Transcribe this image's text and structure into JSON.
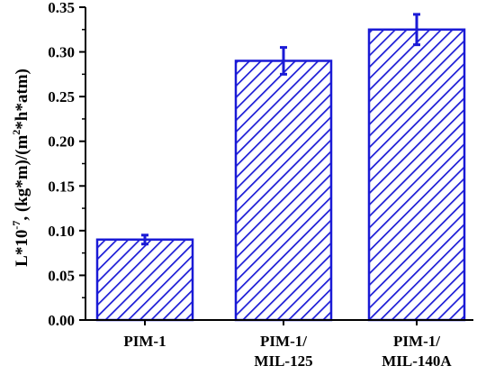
{
  "chart_data": {
    "type": "bar",
    "categories": [
      [
        "PIM-1"
      ],
      [
        "PIM-1/",
        "MIL-125"
      ],
      [
        "PIM-1/",
        "MIL-140A"
      ]
    ],
    "values": [
      0.09,
      0.29,
      0.325
    ],
    "errors": [
      0.005,
      0.015,
      0.017
    ],
    "ylim": [
      0.0,
      0.35
    ],
    "yticks": [
      "0.00",
      "0.05",
      "0.10",
      "0.15",
      "0.20",
      "0.25",
      "0.30",
      "0.35"
    ],
    "ylabel": {
      "prefix": "L*10",
      "exponent": "-7",
      "middle": ", (kg*m)/(m",
      "exponent2": "2",
      "suffix": "*h*atm)"
    },
    "xlabel": "",
    "title": "",
    "bar_fill": "hatched-diagonal",
    "bar_color": "#1a1ad6",
    "error_color": "#1a1ad6",
    "grid": false,
    "legend": false
  }
}
